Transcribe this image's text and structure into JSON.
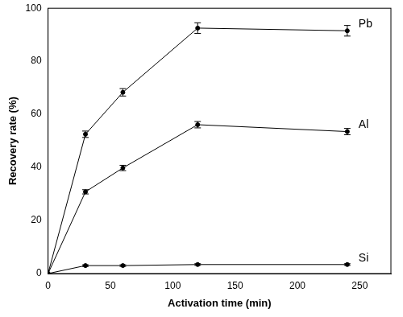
{
  "chart_data": {
    "type": "line",
    "x_label": "Activation time (min)",
    "y_label": "Recovery rate (%)",
    "x": [
      0,
      30,
      60,
      120,
      240
    ],
    "series": [
      {
        "name": "Pb",
        "color": "#000000",
        "marker": "circle",
        "values": [
          0,
          52.5,
          68.3,
          92.5,
          91.5
        ],
        "errors": [
          0,
          1.2,
          1.4,
          2.0,
          2.0
        ]
      },
      {
        "name": "Al",
        "color": "#000000",
        "marker": "circle",
        "values": [
          0,
          30.8,
          39.8,
          56.1,
          53.5
        ],
        "errors": [
          0,
          0.8,
          1.0,
          1.2,
          1.2
        ]
      },
      {
        "name": "Si",
        "color": "#000000",
        "marker": "circle",
        "values": [
          0,
          3.0,
          3.0,
          3.4,
          3.4
        ],
        "errors": [
          0,
          0.3,
          0.3,
          0.3,
          0.3
        ]
      }
    ],
    "xlim": [
      0,
      275
    ],
    "xticks": [
      0,
      50,
      100,
      150,
      200,
      250
    ],
    "ylim": [
      0,
      100
    ],
    "yticks": [
      0,
      20,
      40,
      60,
      80,
      100
    ],
    "grid": false
  }
}
